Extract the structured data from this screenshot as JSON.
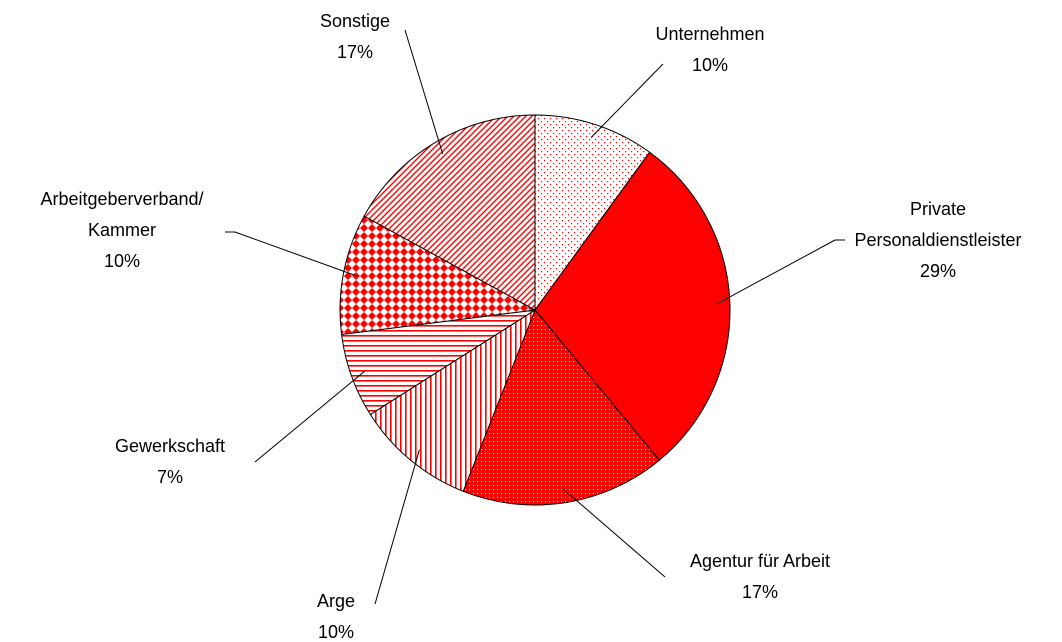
{
  "chart_data": {
    "type": "pie",
    "categories": [
      "Unternehmen",
      "Private\nPersonaldienstleister",
      "Agentur für Arbeit",
      "Arge",
      "Gewerkschaft",
      "Arbeitgeberverband/\nKammer",
      "Sonstige"
    ],
    "values": [
      10,
      29,
      17,
      10,
      7,
      10,
      17
    ],
    "value_labels": [
      "10%",
      "29%",
      "17%",
      "10%",
      "7%",
      "10%",
      "17%"
    ],
    "color": "#ff0000"
  }
}
